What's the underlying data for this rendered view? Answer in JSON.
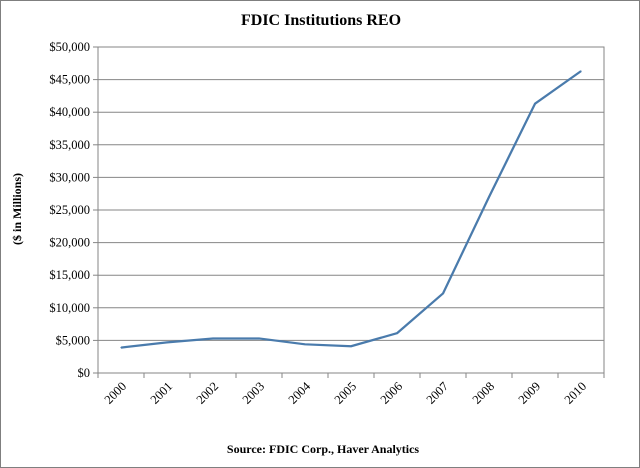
{
  "chart_data": {
    "type": "line",
    "title": "FDIC Institutions  REO",
    "ylabel": "($ in Millions)",
    "xlabel": "",
    "source": "Source: FDIC Corp., Haver Analytics",
    "categories": [
      "2000",
      "2001",
      "2002",
      "2003",
      "2004",
      "2005",
      "2006",
      "2007",
      "2008",
      "2009",
      "2010"
    ],
    "y_ticks": [
      0,
      5000,
      10000,
      15000,
      20000,
      25000,
      30000,
      35000,
      40000,
      45000,
      50000
    ],
    "y_tick_labels": [
      "$0",
      "$5,000",
      "$10,000",
      "$15,000",
      "$20,000",
      "$25,000",
      "$30,000",
      "$35,000",
      "$40,000",
      "$45,000",
      "$50,000"
    ],
    "ylim": [
      0,
      50000
    ],
    "grid": true,
    "series": [
      {
        "values": [
          3900,
          4700,
          5300,
          5300,
          4400,
          4100,
          6100,
          12200,
          27000,
          41300,
          46300
        ],
        "color": "#4a7bac"
      }
    ]
  }
}
